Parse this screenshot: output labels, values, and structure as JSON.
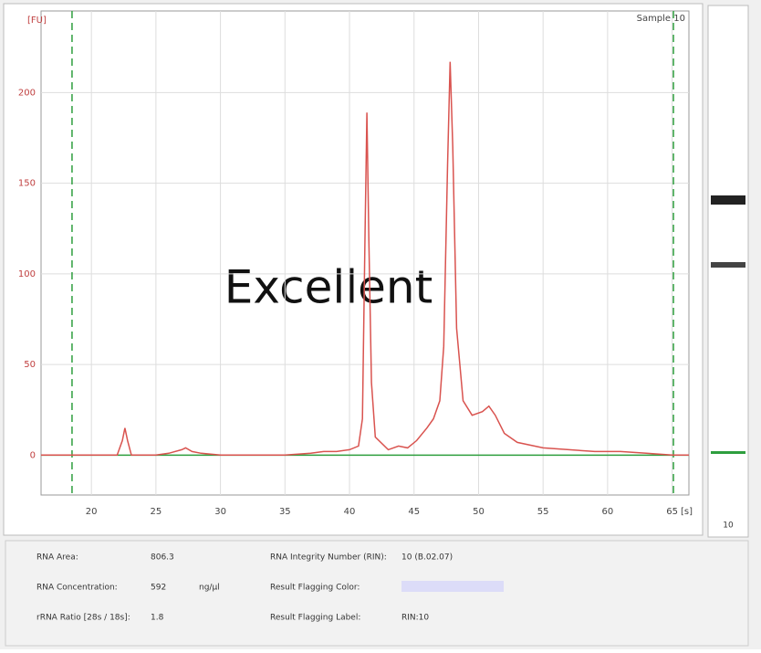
{
  "chart_data": {
    "type": "line",
    "sample_label": "Sample 10",
    "annotation": "Excellent",
    "y_label": "[FU]",
    "x_label": "[s]",
    "x": [
      16.1,
      18,
      22,
      22.4,
      22.6,
      22.8,
      23.1,
      25,
      26,
      27,
      27.3,
      27.8,
      28.5,
      30,
      35,
      37,
      38,
      39,
      40,
      40.7,
      41.0,
      41.2,
      41.35,
      41.5,
      41.7,
      42,
      43,
      43.8,
      44.5,
      45.2,
      46,
      46.5,
      47,
      47.3,
      47.6,
      47.8,
      48,
      48.3,
      48.8,
      49.5,
      50.3,
      50.8,
      51.3,
      52,
      53,
      55,
      57,
      59,
      61,
      63,
      65,
      66.3
    ],
    "series": [
      {
        "color": "#d9534f",
        "values": [
          0,
          0,
          0,
          8,
          15,
          8,
          0,
          0,
          1,
          3,
          4,
          2,
          1,
          0,
          0,
          1,
          2,
          2,
          3,
          5,
          20,
          120,
          189,
          120,
          40,
          10,
          3,
          5,
          4,
          8,
          15,
          20,
          30,
          60,
          160,
          217,
          170,
          70,
          30,
          22,
          24,
          27,
          22,
          12,
          7,
          4,
          3,
          2,
          2,
          1,
          0,
          0
        ]
      }
    ],
    "baseline": 0,
    "baseline_color": "#2e9e3e",
    "markers": [
      18.5,
      65.1
    ],
    "xlim": [
      16.1,
      66.3
    ],
    "ylim": [
      -22,
      245
    ],
    "xticks": [
      20,
      25,
      30,
      35,
      40,
      45,
      50,
      55,
      60,
      65
    ],
    "yticks": [
      0,
      50,
      100,
      150,
      200
    ],
    "grid": true,
    "lane_label": "10"
  },
  "info_panel": {
    "rows": [
      [
        "RNA Area:",
        "806.3",
        "",
        "RNA Integrity Number (RIN):",
        "10 (B.02.07)"
      ],
      [
        "RNA Concentration:",
        "592",
        "ng/µl",
        "Result Flagging Color:",
        ""
      ],
      [
        "rRNA Ratio [28s / 18s]:",
        "1.8",
        "",
        "Result Flagging Label:",
        "RIN:10"
      ]
    ],
    "flag_color": "#dcdcf8"
  }
}
